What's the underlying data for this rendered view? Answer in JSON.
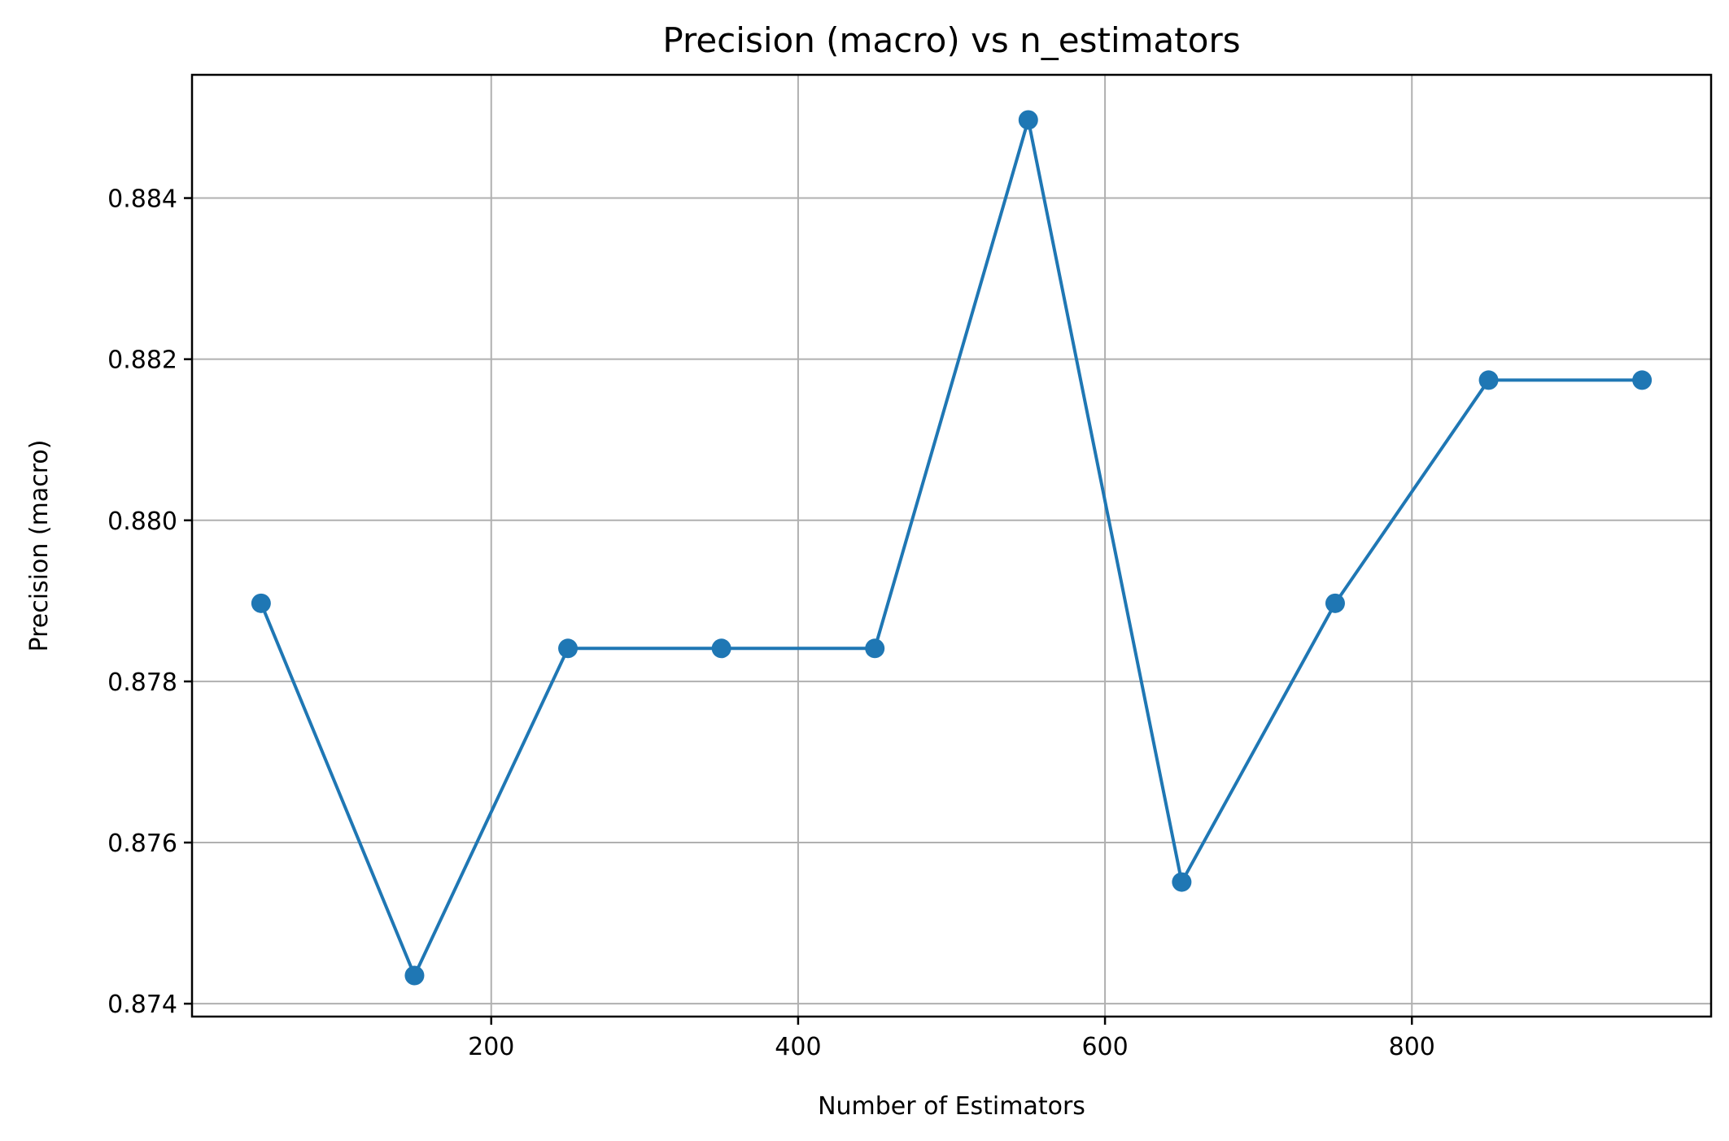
{
  "chart_data": {
    "type": "line",
    "title": "Precision (macro) vs n_estimators",
    "xlabel": "Number of Estimators",
    "ylabel": "Precision (macro)",
    "xlim": [
      5,
      995
    ],
    "ylim": [
      0.87384,
      0.88553
    ],
    "x_ticks": [
      200,
      400,
      600,
      800
    ],
    "y_ticks": [
      0.874,
      0.876,
      0.878,
      0.88,
      0.882,
      0.884
    ],
    "x_tick_labels": [
      "200",
      "400",
      "600",
      "800"
    ],
    "y_tick_labels": [
      "0.874",
      "0.876",
      "0.878",
      "0.880",
      "0.882",
      "0.884"
    ],
    "grid": true,
    "marker": "circle",
    "series": [
      {
        "color": "#1f77b4",
        "x": [
          50,
          150,
          250,
          350,
          450,
          550,
          650,
          750,
          850,
          950
        ],
        "y": [
          0.87897,
          0.87435,
          0.87841,
          0.87841,
          0.87841,
          0.88497,
          0.87551,
          0.87897,
          0.88174,
          0.88174
        ]
      }
    ]
  }
}
